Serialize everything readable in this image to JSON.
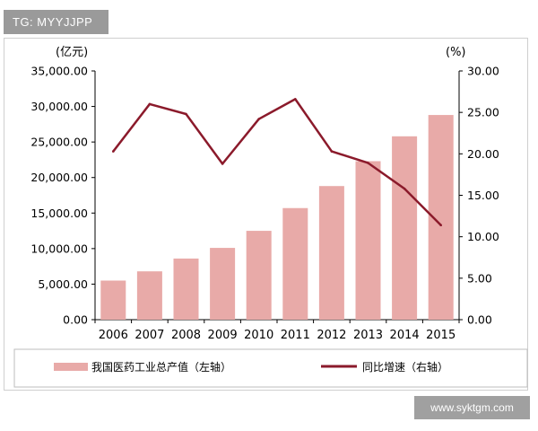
{
  "badge": {
    "text": "TG: MYYJJPP"
  },
  "watermark": {
    "text": "www.syktgm.com"
  },
  "chart_data": {
    "type": "bar",
    "title": "",
    "left_unit": "(亿元)",
    "right_unit": "(%)",
    "categories": [
      "2006",
      "2007",
      "2008",
      "2009",
      "2010",
      "2011",
      "2012",
      "2013",
      "2014",
      "2015"
    ],
    "ylim_left": [
      0,
      35000
    ],
    "ylim_right": [
      0,
      30
    ],
    "left_ticks": [
      "0.00",
      "5,000.00",
      "10,000.00",
      "15,000.00",
      "20,000.00",
      "25,000.00",
      "30,000.00",
      "35,000.00"
    ],
    "right_ticks": [
      "0.00",
      "5.00",
      "10.00",
      "15.00",
      "20.00",
      "25.00",
      "30.00"
    ],
    "series": [
      {
        "name": "我国医药工业总产值（左轴）",
        "type": "bar",
        "axis": "left",
        "color": "#e8aaa8",
        "values": [
          5500,
          6800,
          8600,
          10100,
          12500,
          15700,
          18800,
          22300,
          25800,
          28800
        ]
      },
      {
        "name": "同比增速（右轴）",
        "type": "line",
        "axis": "right",
        "color": "#8b1a2b",
        "values": [
          20.3,
          26.0,
          24.8,
          18.8,
          24.2,
          26.6,
          20.3,
          18.9,
          15.8,
          11.4
        ]
      }
    ],
    "legend_position": "bottom",
    "grid": false
  }
}
